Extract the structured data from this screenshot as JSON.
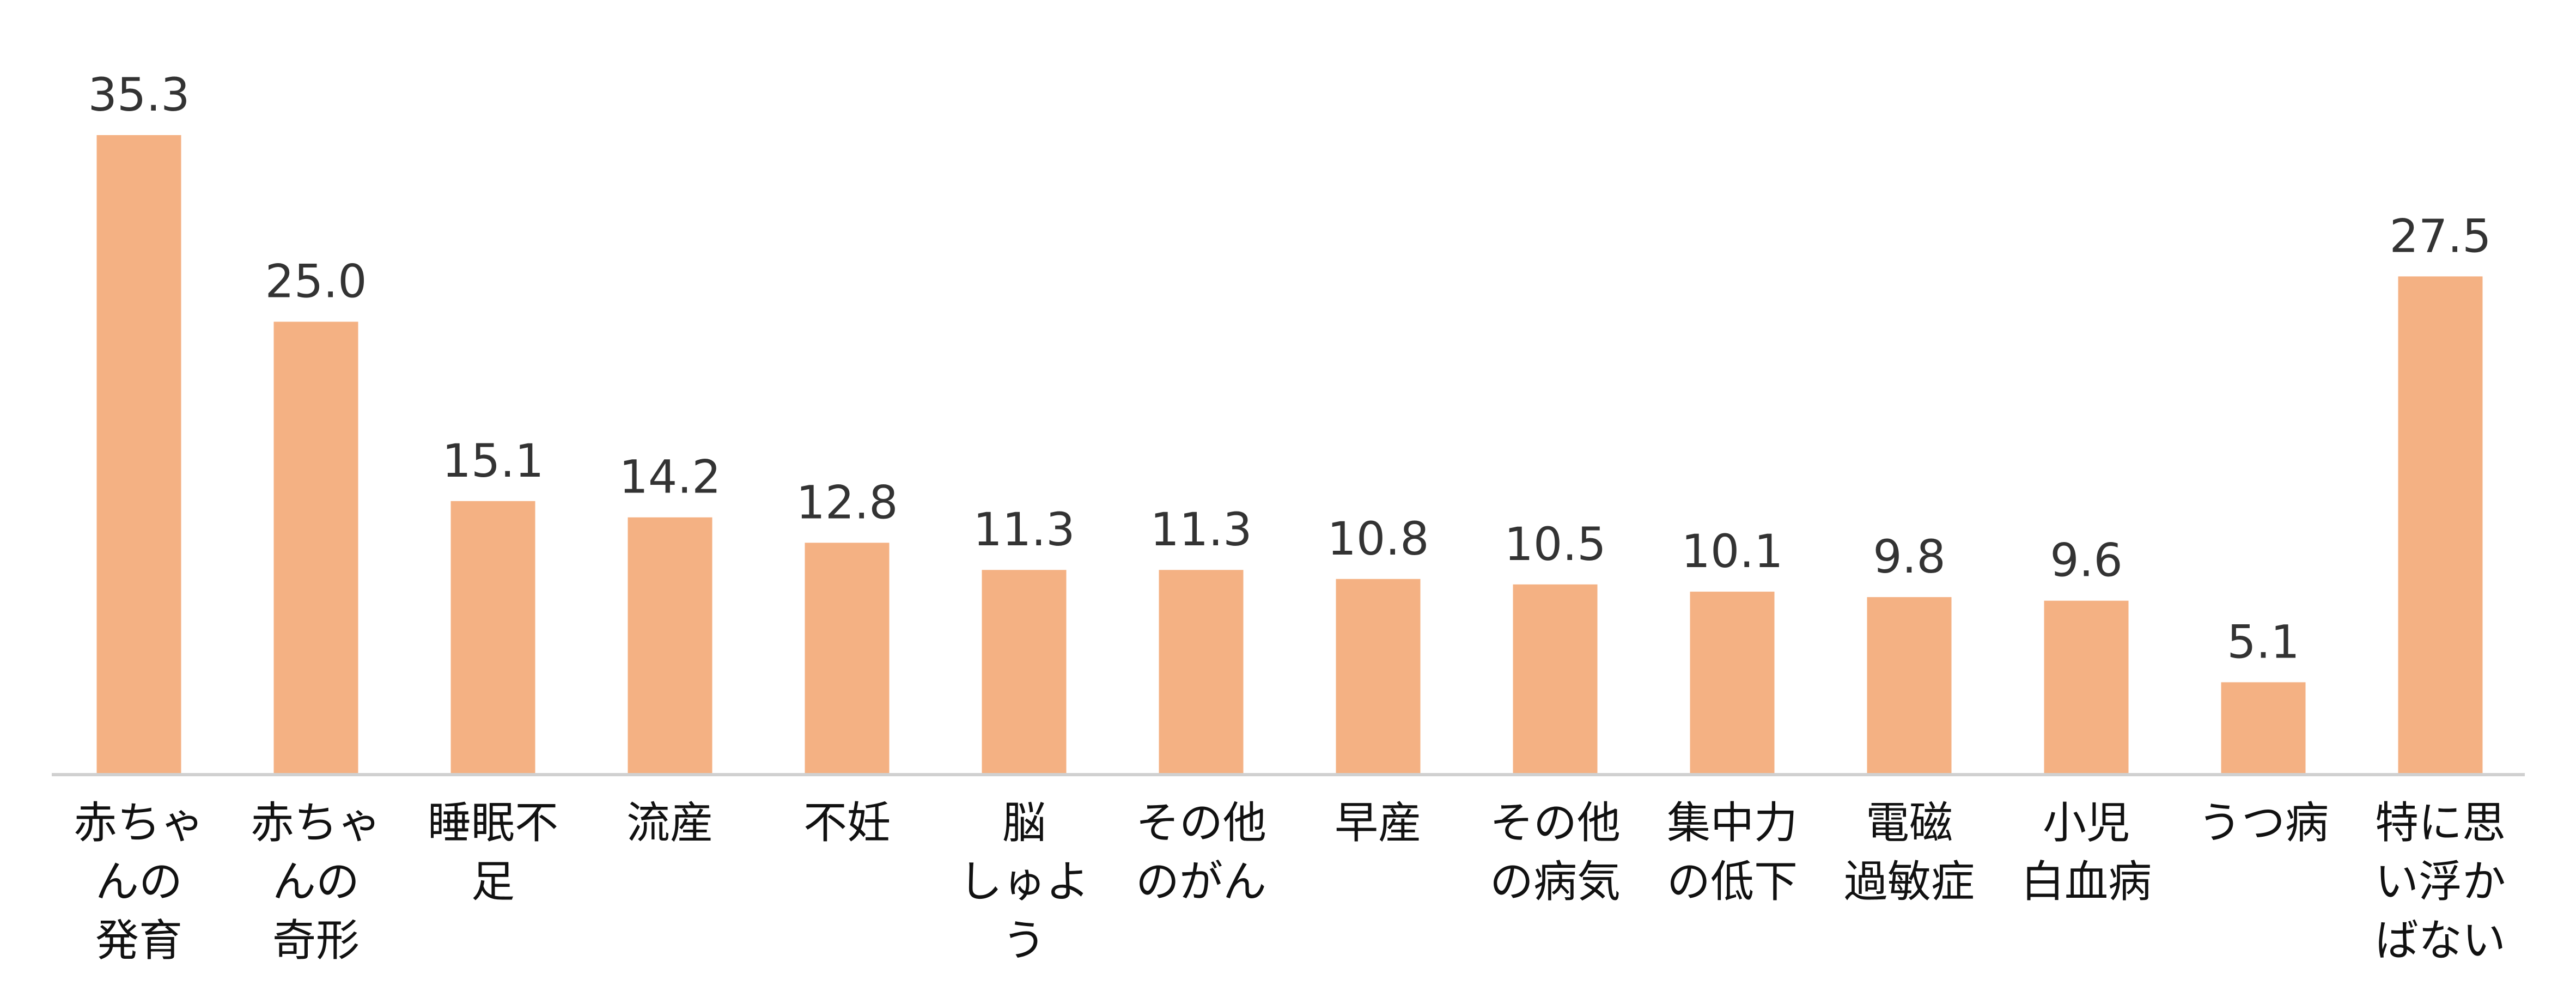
{
  "chart_data": {
    "type": "bar",
    "categories": [
      "赤ちゃんの発育",
      "赤ちゃんの奇形",
      "睡眠不足",
      "流産",
      "不妊",
      "脳しゅよう",
      "その他のがん",
      "早産",
      "その他の病気",
      "集中力の低下",
      "電磁過敏症",
      "小児白血病",
      "うつ病",
      "特に思い浮かばない"
    ],
    "category_lines": [
      [
        "赤ちゃ",
        "んの",
        "発育"
      ],
      [
        "赤ちゃ",
        "んの",
        "奇形"
      ],
      [
        "睡眠不",
        "足"
      ],
      [
        "流産"
      ],
      [
        "不妊"
      ],
      [
        "脳",
        "しゅよ",
        "う"
      ],
      [
        "その他",
        "のがん"
      ],
      [
        "早産"
      ],
      [
        "その他",
        "の病気"
      ],
      [
        "集中力",
        "の低下"
      ],
      [
        "電磁",
        "過敏症"
      ],
      [
        "小児",
        "白血病"
      ],
      [
        "うつ病"
      ],
      [
        "特に思",
        "い浮か",
        "ばない"
      ]
    ],
    "values": [
      35.3,
      25.0,
      15.1,
      14.2,
      12.8,
      11.3,
      11.3,
      10.8,
      10.5,
      10.1,
      9.8,
      9.6,
      5.1,
      27.5
    ],
    "value_labels": [
      "35.3",
      "25.0",
      "15.1",
      "14.2",
      "12.8",
      "11.3",
      "11.3",
      "10.8",
      "10.5",
      "10.1",
      "9.8",
      "9.6",
      "5.1",
      "27.5"
    ],
    "ylim": [
      0,
      40
    ],
    "grid": false,
    "legend": "none",
    "colors": {
      "bar": "#F4B183",
      "axis": "#D0D0D0"
    }
  }
}
